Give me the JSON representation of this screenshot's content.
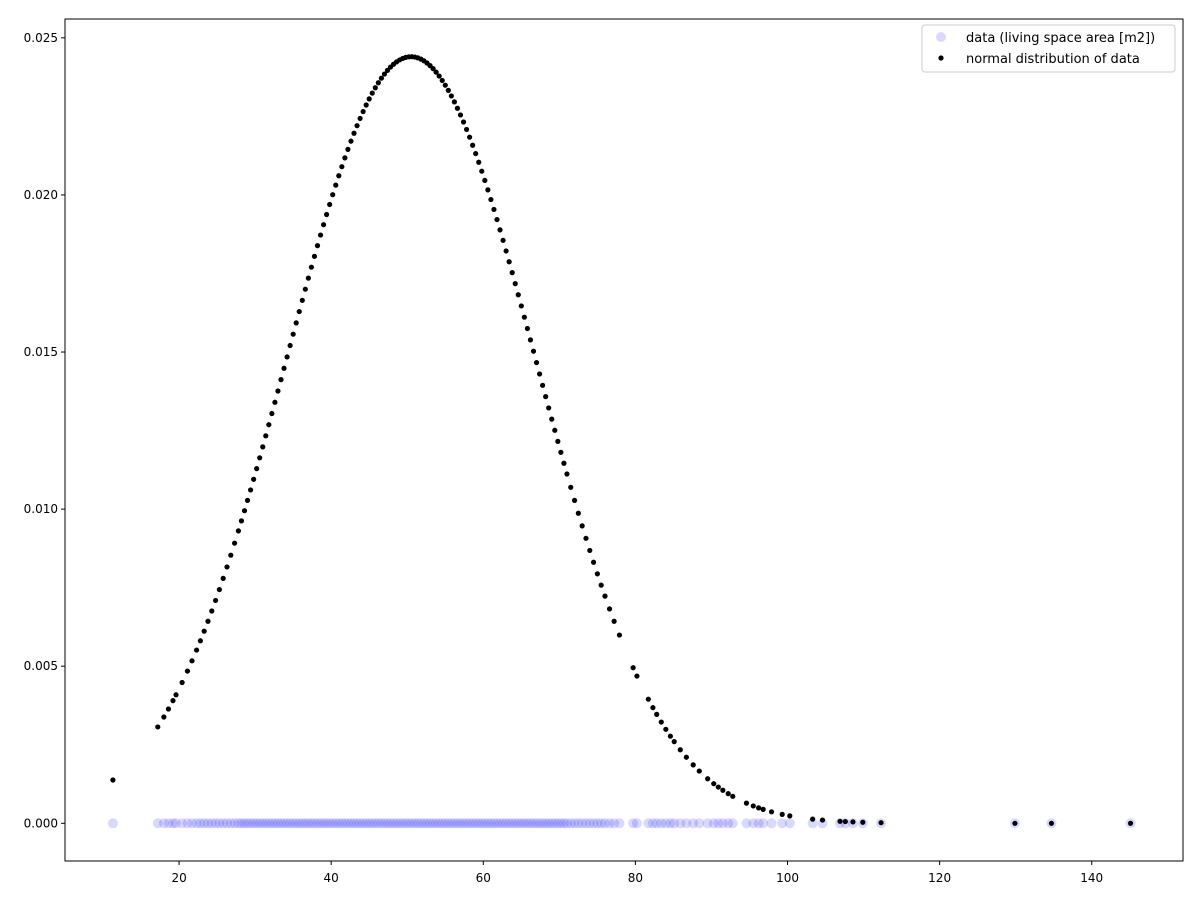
{
  "chart_data": {
    "type": "scatter",
    "title": "",
    "xlabel": "",
    "ylabel": "",
    "xlim": [
      5,
      152
    ],
    "ylim": [
      -0.0012,
      0.0256
    ],
    "xticks": [
      20,
      40,
      60,
      80,
      100,
      120,
      140
    ],
    "yticks": [
      0.0,
      0.005,
      0.01,
      0.015,
      0.02,
      0.025
    ],
    "ytick_labels": [
      "0.000",
      "0.005",
      "0.010",
      "0.015",
      "0.020",
      "0.025"
    ],
    "grid": false,
    "legend_position": "top-right",
    "legend_entries": [
      {
        "label": "data (living space area [m2])",
        "color": "#0000ff",
        "marker": "circle-transparent"
      },
      {
        "label": "normal distribution of data",
        "color": "#000000",
        "marker": "dot"
      }
    ],
    "normal_fit": {
      "mean": 50.5,
      "std": 16.35
    },
    "series": [
      {
        "name": "data (living space area [m2])",
        "color": "#0000ff",
        "opacity": 0.15,
        "x": [
          11.3,
          17.2,
          18.0,
          18.6,
          19.2,
          19.6,
          20.4,
          21.1,
          21.7,
          22.3,
          22.8,
          23.3,
          23.8,
          24.3,
          24.8,
          25.3,
          25.8,
          26.3,
          26.8,
          27.3,
          27.8,
          28.2,
          28.6,
          29.0,
          29.4,
          29.8,
          30.2,
          30.6,
          31.0,
          31.4,
          31.8,
          32.2,
          32.6,
          33.0,
          33.4,
          33.8,
          34.2,
          34.6,
          35.0,
          35.4,
          35.8,
          36.2,
          36.6,
          37.0,
          37.4,
          37.8,
          38.2,
          38.6,
          39.0,
          39.4,
          39.8,
          40.2,
          40.6,
          41.0,
          41.4,
          41.8,
          42.2,
          42.6,
          43.0,
          43.4,
          43.8,
          44.2,
          44.6,
          45.0,
          45.4,
          45.8,
          46.2,
          46.6,
          47.0,
          47.4,
          47.8,
          48.2,
          48.6,
          49.0,
          49.4,
          49.8,
          50.2,
          50.6,
          51.0,
          51.4,
          51.8,
          52.2,
          52.6,
          53.0,
          53.4,
          53.8,
          54.2,
          54.6,
          55.0,
          55.4,
          55.8,
          56.2,
          56.6,
          57.0,
          57.4,
          57.8,
          58.2,
          58.6,
          59.0,
          59.4,
          59.8,
          60.2,
          60.6,
          61.0,
          61.4,
          61.8,
          62.2,
          62.6,
          63.0,
          63.4,
          63.8,
          64.2,
          64.6,
          65.0,
          65.4,
          65.8,
          66.2,
          66.6,
          67.0,
          67.4,
          67.8,
          68.2,
          68.6,
          69.0,
          69.4,
          69.8,
          70.2,
          70.6,
          71.0,
          71.5,
          72.0,
          72.5,
          73.0,
          73.5,
          74.0,
          74.5,
          75.0,
          75.5,
          76.0,
          76.6,
          77.2,
          77.9,
          79.7,
          80.2,
          81.7,
          82.3,
          82.8,
          83.4,
          84.0,
          84.6,
          85.1,
          85.9,
          86.7,
          87.6,
          88.4,
          89.5,
          90.3,
          90.9,
          91.5,
          92.2,
          92.8,
          94.6,
          95.5,
          96.2,
          96.8,
          97.9,
          99.3,
          100.3,
          103.3,
          104.6,
          106.9,
          107.6,
          108.6,
          109.9,
          112.3,
          129.9,
          134.7,
          145.1
        ],
        "y": "all 0"
      },
      {
        "name": "normal distribution of data",
        "color": "#000000",
        "x": "same as data",
        "y": "normal pdf of x (mean 50.5, std 16.35)"
      }
    ]
  }
}
